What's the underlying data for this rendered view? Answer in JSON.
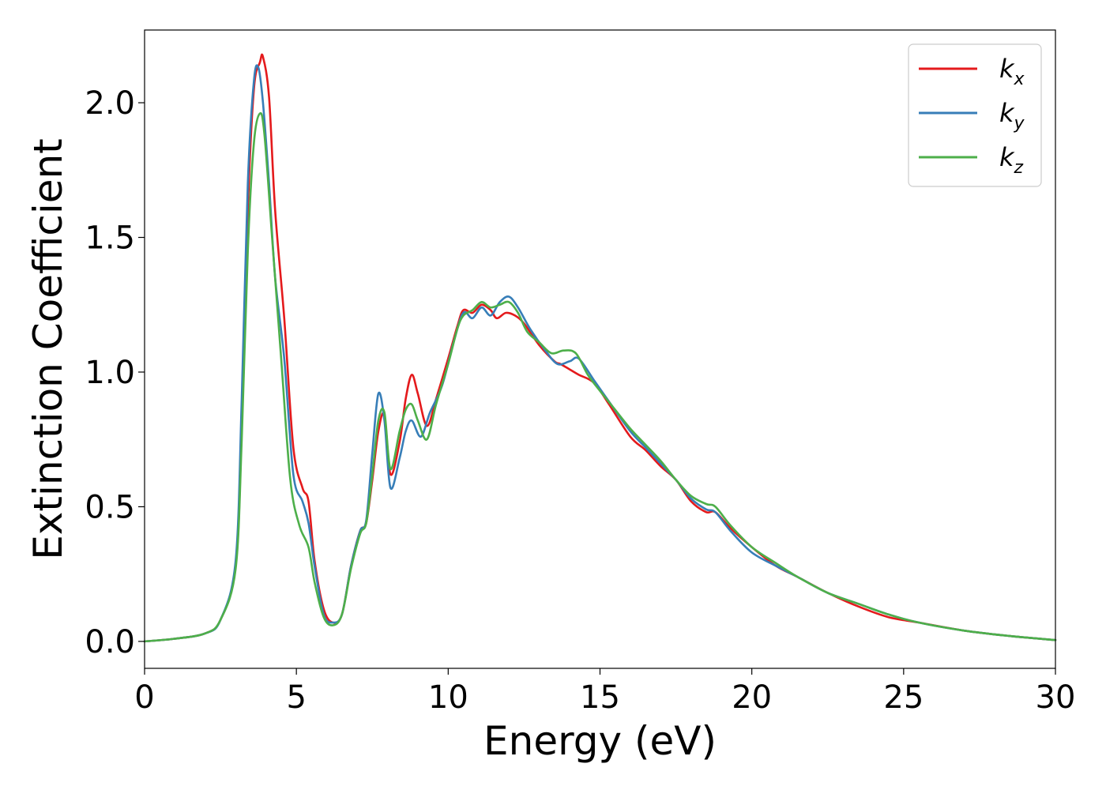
{
  "chart_data": {
    "type": "line",
    "xlabel": "Energy (eV)",
    "ylabel": "Extinction Coefficient",
    "xlim": [
      0,
      30
    ],
    "ylim": [
      -0.1,
      2.27
    ],
    "xticks": [
      0,
      5,
      10,
      15,
      20,
      25,
      30
    ],
    "xtick_labels": [
      "0",
      "5",
      "10",
      "15",
      "20",
      "25",
      "30"
    ],
    "yticks": [
      0.0,
      0.5,
      1.0,
      1.5,
      2.0
    ],
    "ytick_labels": [
      "0.0",
      "0.5",
      "1.0",
      "1.5",
      "2.0"
    ],
    "grid": false,
    "legend_position": "top-right",
    "series": [
      {
        "name": "k_x",
        "label_base": "k",
        "label_sub": "x",
        "color": "#e41a1c",
        "points": [
          [
            0,
            0
          ],
          [
            1,
            0.01
          ],
          [
            2,
            0.03
          ],
          [
            2.5,
            0.08
          ],
          [
            3,
            0.28
          ],
          [
            3.2,
            0.8
          ],
          [
            3.4,
            1.6
          ],
          [
            3.6,
            2.05
          ],
          [
            3.8,
            2.15
          ],
          [
            3.9,
            2.17
          ],
          [
            4.1,
            2.02
          ],
          [
            4.3,
            1.6
          ],
          [
            4.6,
            1.2
          ],
          [
            4.9,
            0.72
          ],
          [
            5.2,
            0.57
          ],
          [
            5.4,
            0.52
          ],
          [
            5.6,
            0.3
          ],
          [
            5.9,
            0.12
          ],
          [
            6.2,
            0.07
          ],
          [
            6.5,
            0.1
          ],
          [
            6.8,
            0.28
          ],
          [
            7.1,
            0.41
          ],
          [
            7.3,
            0.44
          ],
          [
            7.5,
            0.6
          ],
          [
            7.7,
            0.78
          ],
          [
            7.9,
            0.84
          ],
          [
            8.1,
            0.62
          ],
          [
            8.4,
            0.74
          ],
          [
            8.6,
            0.9
          ],
          [
            8.8,
            0.99
          ],
          [
            9.0,
            0.92
          ],
          [
            9.3,
            0.8
          ],
          [
            9.6,
            0.9
          ],
          [
            10,
            1.05
          ],
          [
            10.3,
            1.17
          ],
          [
            10.5,
            1.23
          ],
          [
            10.8,
            1.22
          ],
          [
            11.1,
            1.25
          ],
          [
            11.4,
            1.23
          ],
          [
            11.6,
            1.2
          ],
          [
            11.9,
            1.22
          ],
          [
            12.2,
            1.21
          ],
          [
            12.5,
            1.18
          ],
          [
            13,
            1.1
          ],
          [
            13.5,
            1.04
          ],
          [
            13.7,
            1.03
          ],
          [
            14,
            1.01
          ],
          [
            14.3,
            0.99
          ],
          [
            14.8,
            0.96
          ],
          [
            15.3,
            0.88
          ],
          [
            16,
            0.76
          ],
          [
            16.5,
            0.71
          ],
          [
            17,
            0.65
          ],
          [
            17.5,
            0.6
          ],
          [
            18,
            0.52
          ],
          [
            18.5,
            0.48
          ],
          [
            18.8,
            0.48
          ],
          [
            19.3,
            0.42
          ],
          [
            20,
            0.35
          ],
          [
            20.8,
            0.28
          ],
          [
            21.5,
            0.24
          ],
          [
            22.5,
            0.18
          ],
          [
            23.5,
            0.13
          ],
          [
            24.5,
            0.09
          ],
          [
            25.5,
            0.07
          ],
          [
            27,
            0.04
          ],
          [
            28.5,
            0.02
          ],
          [
            30,
            0.005
          ]
        ]
      },
      {
        "name": "k_y",
        "label_base": "k",
        "label_sub": "y",
        "color": "#377eb8",
        "points": [
          [
            0,
            0
          ],
          [
            1,
            0.01
          ],
          [
            2,
            0.03
          ],
          [
            2.5,
            0.08
          ],
          [
            3,
            0.3
          ],
          [
            3.2,
            0.9
          ],
          [
            3.4,
            1.7
          ],
          [
            3.6,
            2.08
          ],
          [
            3.75,
            2.13
          ],
          [
            3.9,
            2.0
          ],
          [
            4.1,
            1.7
          ],
          [
            4.3,
            1.35
          ],
          [
            4.6,
            1.05
          ],
          [
            4.9,
            0.62
          ],
          [
            5.2,
            0.52
          ],
          [
            5.4,
            0.44
          ],
          [
            5.6,
            0.28
          ],
          [
            5.9,
            0.1
          ],
          [
            6.2,
            0.07
          ],
          [
            6.5,
            0.1
          ],
          [
            6.8,
            0.28
          ],
          [
            7.1,
            0.41
          ],
          [
            7.3,
            0.45
          ],
          [
            7.5,
            0.7
          ],
          [
            7.7,
            0.92
          ],
          [
            7.9,
            0.82
          ],
          [
            8.1,
            0.57
          ],
          [
            8.4,
            0.68
          ],
          [
            8.6,
            0.78
          ],
          [
            8.8,
            0.82
          ],
          [
            9.1,
            0.76
          ],
          [
            9.4,
            0.85
          ],
          [
            9.8,
            0.95
          ],
          [
            10.2,
            1.12
          ],
          [
            10.5,
            1.22
          ],
          [
            10.8,
            1.2
          ],
          [
            11.1,
            1.24
          ],
          [
            11.4,
            1.21
          ],
          [
            11.7,
            1.26
          ],
          [
            12,
            1.28
          ],
          [
            12.3,
            1.24
          ],
          [
            12.7,
            1.16
          ],
          [
            13.2,
            1.08
          ],
          [
            13.6,
            1.03
          ],
          [
            14,
            1.04
          ],
          [
            14.3,
            1.05
          ],
          [
            14.8,
            0.97
          ],
          [
            15.3,
            0.89
          ],
          [
            16,
            0.78
          ],
          [
            16.5,
            0.72
          ],
          [
            17,
            0.66
          ],
          [
            17.5,
            0.6
          ],
          [
            18,
            0.53
          ],
          [
            18.5,
            0.49
          ],
          [
            18.8,
            0.48
          ],
          [
            19.3,
            0.41
          ],
          [
            20,
            0.33
          ],
          [
            20.8,
            0.28
          ],
          [
            21.5,
            0.24
          ],
          [
            22.5,
            0.18
          ],
          [
            23.5,
            0.14
          ],
          [
            24.5,
            0.1
          ],
          [
            25.5,
            0.07
          ],
          [
            27,
            0.04
          ],
          [
            28.5,
            0.02
          ],
          [
            30,
            0.005
          ]
        ]
      },
      {
        "name": "k_z",
        "label_base": "k",
        "label_sub": "z",
        "color": "#4daf4a",
        "points": [
          [
            0,
            0
          ],
          [
            1,
            0.01
          ],
          [
            2,
            0.03
          ],
          [
            2.5,
            0.08
          ],
          [
            3,
            0.27
          ],
          [
            3.2,
            0.75
          ],
          [
            3.4,
            1.45
          ],
          [
            3.6,
            1.85
          ],
          [
            3.8,
            1.96
          ],
          [
            3.95,
            1.88
          ],
          [
            4.2,
            1.5
          ],
          [
            4.5,
            1.05
          ],
          [
            4.8,
            0.6
          ],
          [
            5.1,
            0.43
          ],
          [
            5.4,
            0.35
          ],
          [
            5.6,
            0.22
          ],
          [
            5.9,
            0.09
          ],
          [
            6.2,
            0.06
          ],
          [
            6.5,
            0.1
          ],
          [
            6.8,
            0.27
          ],
          [
            7.1,
            0.4
          ],
          [
            7.3,
            0.44
          ],
          [
            7.5,
            0.62
          ],
          [
            7.7,
            0.82
          ],
          [
            7.9,
            0.85
          ],
          [
            8.1,
            0.64
          ],
          [
            8.4,
            0.78
          ],
          [
            8.6,
            0.86
          ],
          [
            8.8,
            0.88
          ],
          [
            9.0,
            0.82
          ],
          [
            9.3,
            0.75
          ],
          [
            9.6,
            0.88
          ],
          [
            10,
            1.03
          ],
          [
            10.3,
            1.16
          ],
          [
            10.5,
            1.21
          ],
          [
            10.8,
            1.23
          ],
          [
            11.1,
            1.26
          ],
          [
            11.4,
            1.24
          ],
          [
            11.7,
            1.25
          ],
          [
            12,
            1.26
          ],
          [
            12.3,
            1.22
          ],
          [
            12.6,
            1.15
          ],
          [
            13,
            1.11
          ],
          [
            13.4,
            1.07
          ],
          [
            13.8,
            1.08
          ],
          [
            14.2,
            1.07
          ],
          [
            14.6,
            0.99
          ],
          [
            15,
            0.93
          ],
          [
            15.5,
            0.86
          ],
          [
            16,
            0.79
          ],
          [
            16.5,
            0.73
          ],
          [
            17,
            0.67
          ],
          [
            17.5,
            0.6
          ],
          [
            18,
            0.54
          ],
          [
            18.5,
            0.51
          ],
          [
            18.8,
            0.5
          ],
          [
            19.3,
            0.43
          ],
          [
            20,
            0.35
          ],
          [
            20.8,
            0.29
          ],
          [
            21.5,
            0.24
          ],
          [
            22.5,
            0.18
          ],
          [
            23.5,
            0.14
          ],
          [
            24.5,
            0.1
          ],
          [
            25.5,
            0.07
          ],
          [
            27,
            0.04
          ],
          [
            28.5,
            0.02
          ],
          [
            30,
            0.005
          ]
        ]
      }
    ]
  }
}
